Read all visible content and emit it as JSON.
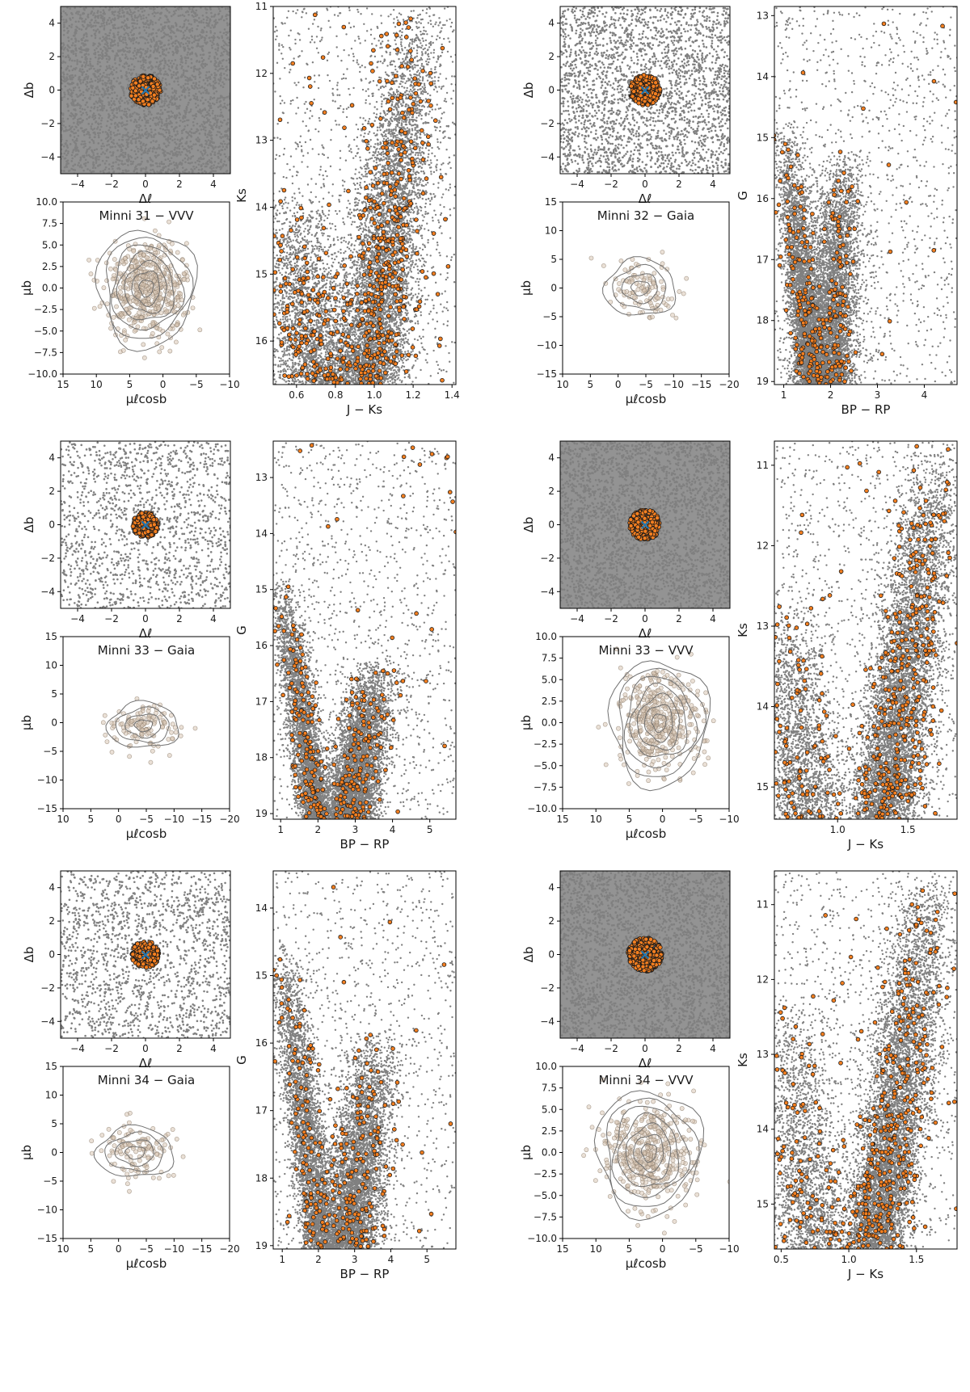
{
  "figure": {
    "background": "#ffffff",
    "colors": {
      "field_stars": "#808080",
      "members_fill": "#f47f20",
      "members_edge": "#1a1a1a",
      "cluster_center_marker": "#1f77b4",
      "pm_points_fill": "#d9c6b4",
      "pm_points_edge": "#8a7a6a",
      "contours": "#707070",
      "axes": "#000000"
    },
    "center_marker": "×"
  },
  "chart_data": [
    {
      "id": "minni31_vvv_sky",
      "type": "scatter",
      "subplot": "sky",
      "xlabel": "Δℓ",
      "ylabel": "Δb",
      "xlim": [
        -5,
        5
      ],
      "ylim": [
        -5,
        5
      ],
      "xticks": [
        "−4",
        "−2",
        "0",
        "2",
        "4"
      ],
      "yticks": [
        "−4",
        "−2",
        "0",
        "2",
        "4"
      ],
      "field_density": 1.0,
      "member_radius": 0.9,
      "members": 320,
      "cluster_center": [
        0,
        0
      ]
    },
    {
      "id": "minni31_vvv_pm",
      "type": "scatter",
      "subplot": "pm",
      "title": "Minni 31 − VVV",
      "xlabel": "μℓcosb",
      "ylabel": "μb",
      "xlim": [
        15,
        -10
      ],
      "ylim": [
        -10,
        10
      ],
      "xticks": [
        "15",
        "10",
        "5",
        "0",
        "−5",
        "−10"
      ],
      "yticks": [
        "10.0",
        "7.5",
        "5.0",
        "2.5",
        "0.0",
        "−2.5",
        "−5.0",
        "−7.5",
        "−10.0"
      ],
      "center": [
        2.5,
        0.0
      ],
      "sigma": [
        3.0,
        2.8
      ],
      "n_points": 520,
      "contour_radii": [
        0.35,
        0.7,
        1.05,
        1.4,
        1.75,
        2.1,
        2.45
      ]
    },
    {
      "id": "minni31_vvv_cmd",
      "type": "scatter",
      "subplot": "cmd",
      "xlabel": "J − Ks",
      "ylabel": "Ks",
      "xlim": [
        0.48,
        1.42
      ],
      "ylim": [
        16.65,
        11.0
      ],
      "xticks": [
        "0.6",
        "0.8",
        "1.0",
        "1.2",
        "1.4"
      ],
      "yticks": [
        "11",
        "12",
        "13",
        "14",
        "15",
        "16"
      ],
      "x_ticks_values": [
        0.6,
        0.8,
        1.0,
        1.2,
        1.4
      ],
      "y_ticks_values": [
        11,
        12,
        13,
        14,
        15,
        16
      ],
      "branches": [
        {
          "from": [
            1.23,
            11.0
          ],
          "to": [
            0.96,
            16.65
          ],
          "width": 0.09,
          "weight": 0.7
        },
        {
          "from": [
            0.55,
            13.7
          ],
          "to": [
            0.72,
            16.65
          ],
          "width": 0.12,
          "weight": 0.3
        }
      ],
      "members": 620
    },
    {
      "id": "minni32_gaia_sky",
      "type": "scatter",
      "subplot": "sky",
      "xlabel": "Δℓ",
      "ylabel": "Δb",
      "xlim": [
        -5,
        5
      ],
      "ylim": [
        -5,
        5
      ],
      "xticks": [
        "−4",
        "−2",
        "0",
        "2",
        "4"
      ],
      "yticks": [
        "−4",
        "−2",
        "0",
        "2",
        "4"
      ],
      "field_density": 0.8,
      "member_radius": 0.9,
      "members": 260,
      "cluster_center": [
        0,
        0
      ]
    },
    {
      "id": "minni32_gaia_pm",
      "type": "scatter",
      "subplot": "pm",
      "title": "Minni 32 − Gaia",
      "xlabel": "μℓcosb",
      "ylabel": "μb",
      "xlim": [
        10,
        -20
      ],
      "ylim": [
        -15,
        15
      ],
      "xticks": [
        "10",
        "5",
        "0",
        "−5",
        "−10",
        "−15",
        "−20"
      ],
      "yticks": [
        "15",
        "10",
        "5",
        "0",
        "−5",
        "−10",
        "−15"
      ],
      "center": [
        -4.0,
        0.0
      ],
      "sigma": [
        3.2,
        2.5
      ],
      "n_points": 110,
      "contour_radii": [
        0.5,
        1.0,
        1.5,
        2.0
      ]
    },
    {
      "id": "minni32_gaia_cmd",
      "type": "scatter",
      "subplot": "cmd",
      "xlabel": "BP − RP",
      "ylabel": "G",
      "xlim": [
        0.8,
        4.7
      ],
      "ylim": [
        19.05,
        12.85
      ],
      "xticks": [
        "1",
        "2",
        "3",
        "4"
      ],
      "yticks": [
        "13",
        "14",
        "15",
        "16",
        "17",
        "18",
        "19"
      ],
      "x_ticks_values": [
        1,
        2,
        3,
        4
      ],
      "y_ticks_values": [
        13,
        14,
        15,
        16,
        17,
        18,
        19
      ],
      "branches": [
        {
          "from": [
            1.05,
            14.8
          ],
          "to": [
            1.6,
            19.05
          ],
          "width": 0.18,
          "weight": 0.45
        },
        {
          "from": [
            2.3,
            15.2
          ],
          "to": [
            1.9,
            19.05
          ],
          "width": 0.28,
          "weight": 0.55
        }
      ],
      "members": 300
    },
    {
      "id": "minni33_gaia_sky",
      "type": "scatter",
      "subplot": "sky",
      "xlabel": "Δℓ",
      "ylabel": "Δb",
      "xlim": [
        -5,
        5
      ],
      "ylim": [
        -5,
        5
      ],
      "xticks": [
        "−4",
        "−2",
        "0",
        "2",
        "4"
      ],
      "yticks": [
        "−4",
        "−2",
        "0",
        "2",
        "4"
      ],
      "field_density": 0.45,
      "member_radius": 0.75,
      "members": 220,
      "cluster_center": [
        0,
        0
      ]
    },
    {
      "id": "minni33_gaia_pm",
      "type": "scatter",
      "subplot": "pm",
      "title": "Minni 33 − Gaia",
      "xlabel": "μℓcosb",
      "ylabel": "μb",
      "xlim": [
        10,
        -20
      ],
      "ylim": [
        -15,
        15
      ],
      "xticks": [
        "10",
        "5",
        "0",
        "−5",
        "−10",
        "−15",
        "−20"
      ],
      "yticks": [
        "15",
        "10",
        "5",
        "0",
        "−5",
        "−10",
        "−15"
      ],
      "center": [
        -4.5,
        -0.5
      ],
      "sigma": [
        3.2,
        2.0
      ],
      "n_points": 120,
      "contour_radii": [
        0.5,
        1.0,
        1.5,
        2.0
      ]
    },
    {
      "id": "minni33_gaia_cmd",
      "type": "scatter",
      "subplot": "cmd",
      "xlabel": "BP − RP",
      "ylabel": "G",
      "xlim": [
        0.8,
        5.7
      ],
      "ylim": [
        19.1,
        12.35
      ],
      "xticks": [
        "1",
        "2",
        "3",
        "4",
        "5"
      ],
      "yticks": [
        "13",
        "14",
        "15",
        "16",
        "17",
        "18",
        "19"
      ],
      "x_ticks_values": [
        1,
        2,
        3,
        4,
        5
      ],
      "y_ticks_values": [
        13,
        14,
        15,
        16,
        17,
        18,
        19
      ],
      "branches": [
        {
          "from": [
            1.0,
            14.8
          ],
          "to": [
            2.0,
            19.1
          ],
          "width": 0.22,
          "weight": 0.45
        },
        {
          "from": [
            3.6,
            16.2
          ],
          "to": [
            2.8,
            19.1
          ],
          "width": 0.35,
          "weight": 0.55
        }
      ],
      "members": 320
    },
    {
      "id": "minni33_vvv_sky",
      "type": "scatter",
      "subplot": "sky",
      "xlabel": "Δℓ",
      "ylabel": "Δb",
      "xlim": [
        -5,
        5
      ],
      "ylim": [
        -5,
        5
      ],
      "xticks": [
        "−4",
        "−2",
        "0",
        "2",
        "4"
      ],
      "yticks": [
        "−4",
        "−2",
        "0",
        "2",
        "4"
      ],
      "field_density": 1.0,
      "member_radius": 0.9,
      "members": 320,
      "cluster_center": [
        0,
        0
      ]
    },
    {
      "id": "minni33_vvv_pm",
      "type": "scatter",
      "subplot": "pm",
      "title": "Minni 33 − VVV",
      "xlabel": "μℓcosb",
      "ylabel": "μb",
      "xlim": [
        15,
        -10
      ],
      "ylim": [
        -10,
        10
      ],
      "xticks": [
        "15",
        "10",
        "5",
        "0",
        "−5",
        "−10"
      ],
      "yticks": [
        "10.0",
        "7.5",
        "5.0",
        "2.5",
        "0.0",
        "−2.5",
        "−5.0",
        "−7.5",
        "−10.0"
      ],
      "center": [
        0.5,
        0.0
      ],
      "sigma": [
        3.0,
        3.0
      ],
      "n_points": 420,
      "contour_radii": [
        0.35,
        0.7,
        1.05,
        1.4,
        1.75,
        2.1,
        2.45
      ]
    },
    {
      "id": "minni33_vvv_cmd",
      "type": "scatter",
      "subplot": "cmd",
      "xlabel": "J − Ks",
      "ylabel": "Ks",
      "xlim": [
        0.55,
        1.85
      ],
      "ylim": [
        15.4,
        10.7
      ],
      "xticks": [
        "1.0",
        "1.5"
      ],
      "yticks": [
        "11",
        "12",
        "13",
        "14",
        "15"
      ],
      "x_ticks_values": [
        1.0,
        1.5
      ],
      "y_ticks_values": [
        11,
        12,
        13,
        14,
        15
      ],
      "branches": [
        {
          "from": [
            1.72,
            10.7
          ],
          "to": [
            1.32,
            15.4
          ],
          "width": 0.12,
          "weight": 0.75
        },
        {
          "from": [
            0.62,
            12.6
          ],
          "to": [
            0.78,
            15.4
          ],
          "width": 0.14,
          "weight": 0.25
        }
      ],
      "members": 480
    },
    {
      "id": "minni34_gaia_sky",
      "type": "scatter",
      "subplot": "sky",
      "xlabel": "Δℓ",
      "ylabel": "Δb",
      "xlim": [
        -5,
        5
      ],
      "ylim": [
        -5,
        5
      ],
      "xticks": [
        "−4",
        "−2",
        "0",
        "2",
        "4"
      ],
      "yticks": [
        "−4",
        "−2",
        "0",
        "2",
        "4"
      ],
      "field_density": 0.5,
      "member_radius": 0.8,
      "members": 200,
      "cluster_center": [
        0,
        0
      ]
    },
    {
      "id": "minni34_gaia_pm",
      "type": "scatter",
      "subplot": "pm",
      "title": "Minni 34 − Gaia",
      "xlabel": "μℓcosb",
      "ylabel": "μb",
      "xlim": [
        10,
        -20
      ],
      "ylim": [
        -15,
        15
      ],
      "xticks": [
        "10",
        "5",
        "0",
        "−5",
        "−10",
        "−15",
        "−20"
      ],
      "yticks": [
        "15",
        "10",
        "5",
        "0",
        "−5",
        "−10",
        "−15"
      ],
      "center": [
        -3.0,
        0.0
      ],
      "sigma": [
        3.5,
        2.2
      ],
      "n_points": 120,
      "contour_radii": [
        0.5,
        1.0,
        1.5,
        2.0
      ]
    },
    {
      "id": "minni34_gaia_cmd",
      "type": "scatter",
      "subplot": "cmd",
      "xlabel": "BP − RP",
      "ylabel": "G",
      "xlim": [
        0.75,
        5.8
      ],
      "ylim": [
        19.05,
        13.45
      ],
      "xticks": [
        "1",
        "2",
        "3",
        "4",
        "5"
      ],
      "yticks": [
        "14",
        "15",
        "16",
        "17",
        "18",
        "19"
      ],
      "x_ticks_values": [
        1,
        2,
        3,
        4,
        5
      ],
      "y_ticks_values": [
        14,
        15,
        16,
        17,
        18,
        19
      ],
      "branches": [
        {
          "from": [
            1.0,
            14.5
          ],
          "to": [
            2.1,
            19.05
          ],
          "width": 0.25,
          "weight": 0.45
        },
        {
          "from": [
            3.6,
            15.8
          ],
          "to": [
            2.8,
            19.05
          ],
          "width": 0.4,
          "weight": 0.55
        }
      ],
      "members": 300
    },
    {
      "id": "minni34_vvv_sky",
      "type": "scatter",
      "subplot": "sky",
      "xlabel": "Δℓ",
      "ylabel": "Δb",
      "xlim": [
        -5,
        5
      ],
      "ylim": [
        -5,
        5
      ],
      "xticks": [
        "−4",
        "−2",
        "0",
        "2",
        "4"
      ],
      "yticks": [
        "−4",
        "−2",
        "0",
        "2",
        "4"
      ],
      "field_density": 1.0,
      "member_radius": 1.0,
      "members": 340,
      "cluster_center": [
        0,
        0
      ]
    },
    {
      "id": "minni34_vvv_pm",
      "type": "scatter",
      "subplot": "pm",
      "title": "Minni 34 − VVV",
      "xlabel": "μℓcosb",
      "ylabel": "μb",
      "xlim": [
        15,
        -10
      ],
      "ylim": [
        -10,
        10
      ],
      "xticks": [
        "15",
        "10",
        "5",
        "0",
        "−5",
        "−10"
      ],
      "yticks": [
        "10.0",
        "7.5",
        "5.0",
        "2.5",
        "0.0",
        "−2.5",
        "−5.0",
        "−7.5",
        "−10.0"
      ],
      "center": [
        2.0,
        0.0
      ],
      "sigma": [
        3.2,
        3.0
      ],
      "n_points": 460,
      "contour_radii": [
        0.35,
        0.7,
        1.05,
        1.4,
        1.75,
        2.1,
        2.45
      ]
    },
    {
      "id": "minni34_vvv_cmd",
      "type": "scatter",
      "subplot": "cmd",
      "xlabel": "J − Ks",
      "ylabel": "Ks",
      "xlim": [
        0.45,
        1.8
      ],
      "ylim": [
        15.6,
        10.55
      ],
      "xticks": [
        "0.5",
        "1.0",
        "1.5"
      ],
      "yticks": [
        "11",
        "12",
        "13",
        "14",
        "15"
      ],
      "x_ticks_values": [
        0.5,
        1.0,
        1.5
      ],
      "y_ticks_values": [
        11,
        12,
        13,
        14,
        15
      ],
      "branches": [
        {
          "from": [
            1.62,
            10.55
          ],
          "to": [
            1.18,
            15.6
          ],
          "width": 0.12,
          "weight": 0.75
        },
        {
          "from": [
            0.52,
            12.2
          ],
          "to": [
            0.75,
            15.6
          ],
          "width": 0.15,
          "weight": 0.25
        }
      ],
      "members": 480
    }
  ]
}
